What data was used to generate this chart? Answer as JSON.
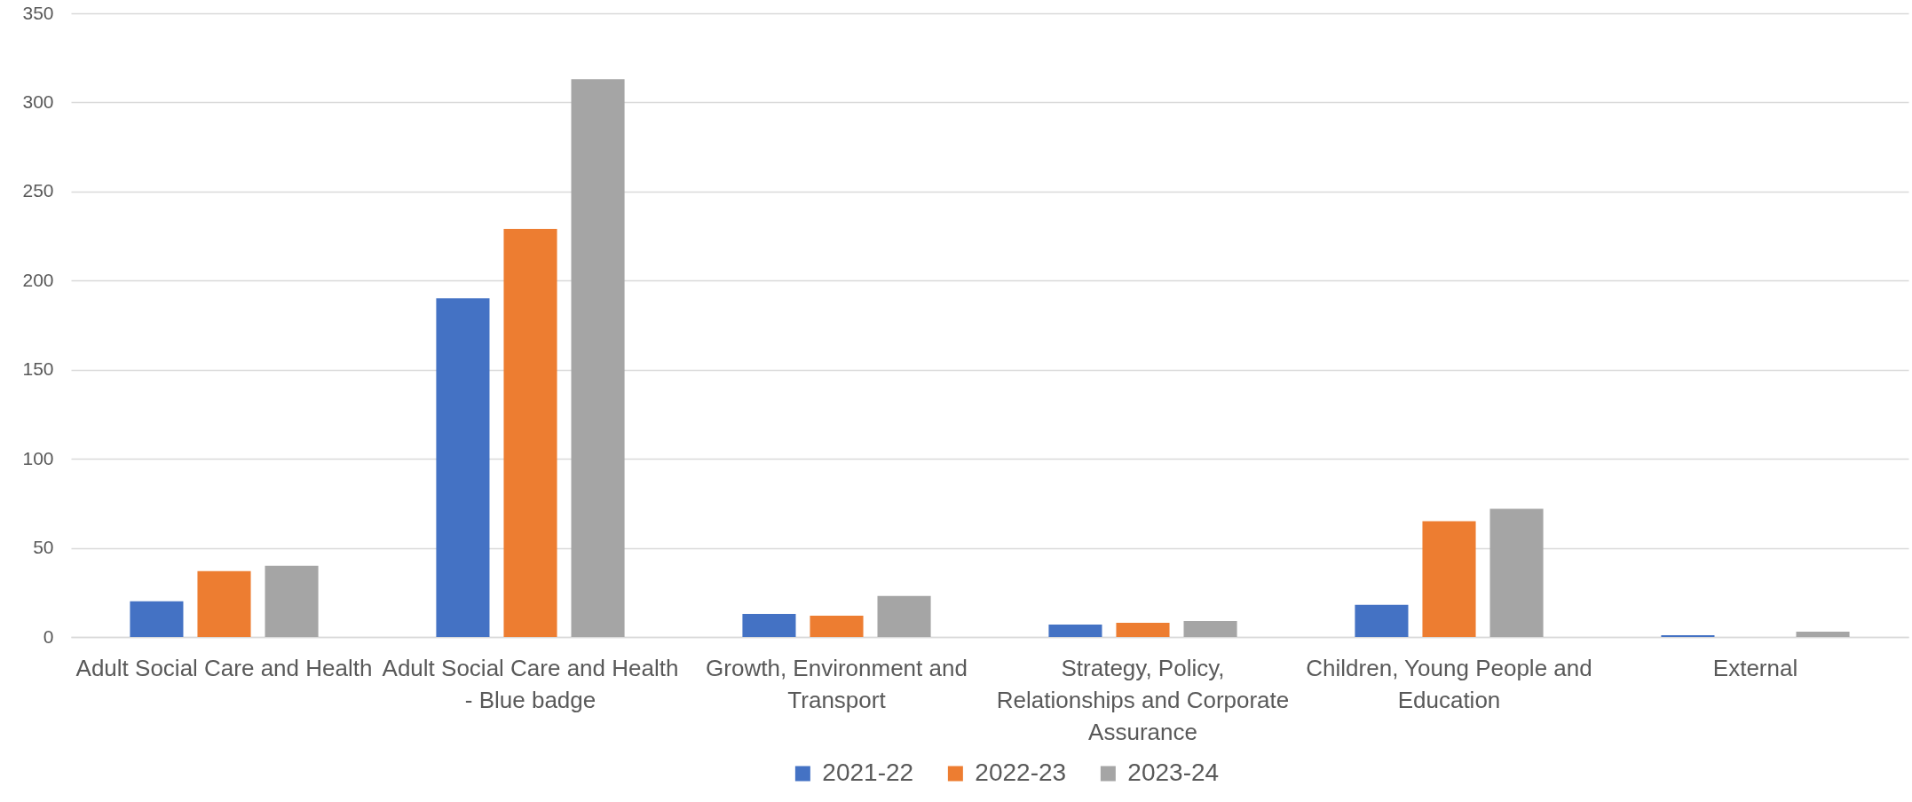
{
  "chart_data": {
    "type": "bar",
    "categories": [
      "Adult Social Care and Health",
      "Adult Social Care and Health - Blue badge",
      "Growth, Environment and Transport",
      "Strategy, Policy, Relationships and Corporate Assurance",
      "Children, Young People and Education",
      "External"
    ],
    "series": [
      {
        "name": "2021-22",
        "color": "#4472c4",
        "values": [
          20,
          190,
          13,
          7,
          18,
          1
        ]
      },
      {
        "name": "2022-23",
        "color": "#ed7d31",
        "values": [
          37,
          229,
          12,
          8,
          65,
          null
        ]
      },
      {
        "name": "2023-24",
        "color": "#a5a5a5",
        "values": [
          40,
          313,
          23,
          9,
          72,
          3
        ]
      }
    ],
    "ylim": [
      0,
      350
    ],
    "yticks": [
      0,
      50,
      100,
      150,
      200,
      250,
      300,
      350
    ],
    "grid": "y",
    "legend": "bottom"
  }
}
